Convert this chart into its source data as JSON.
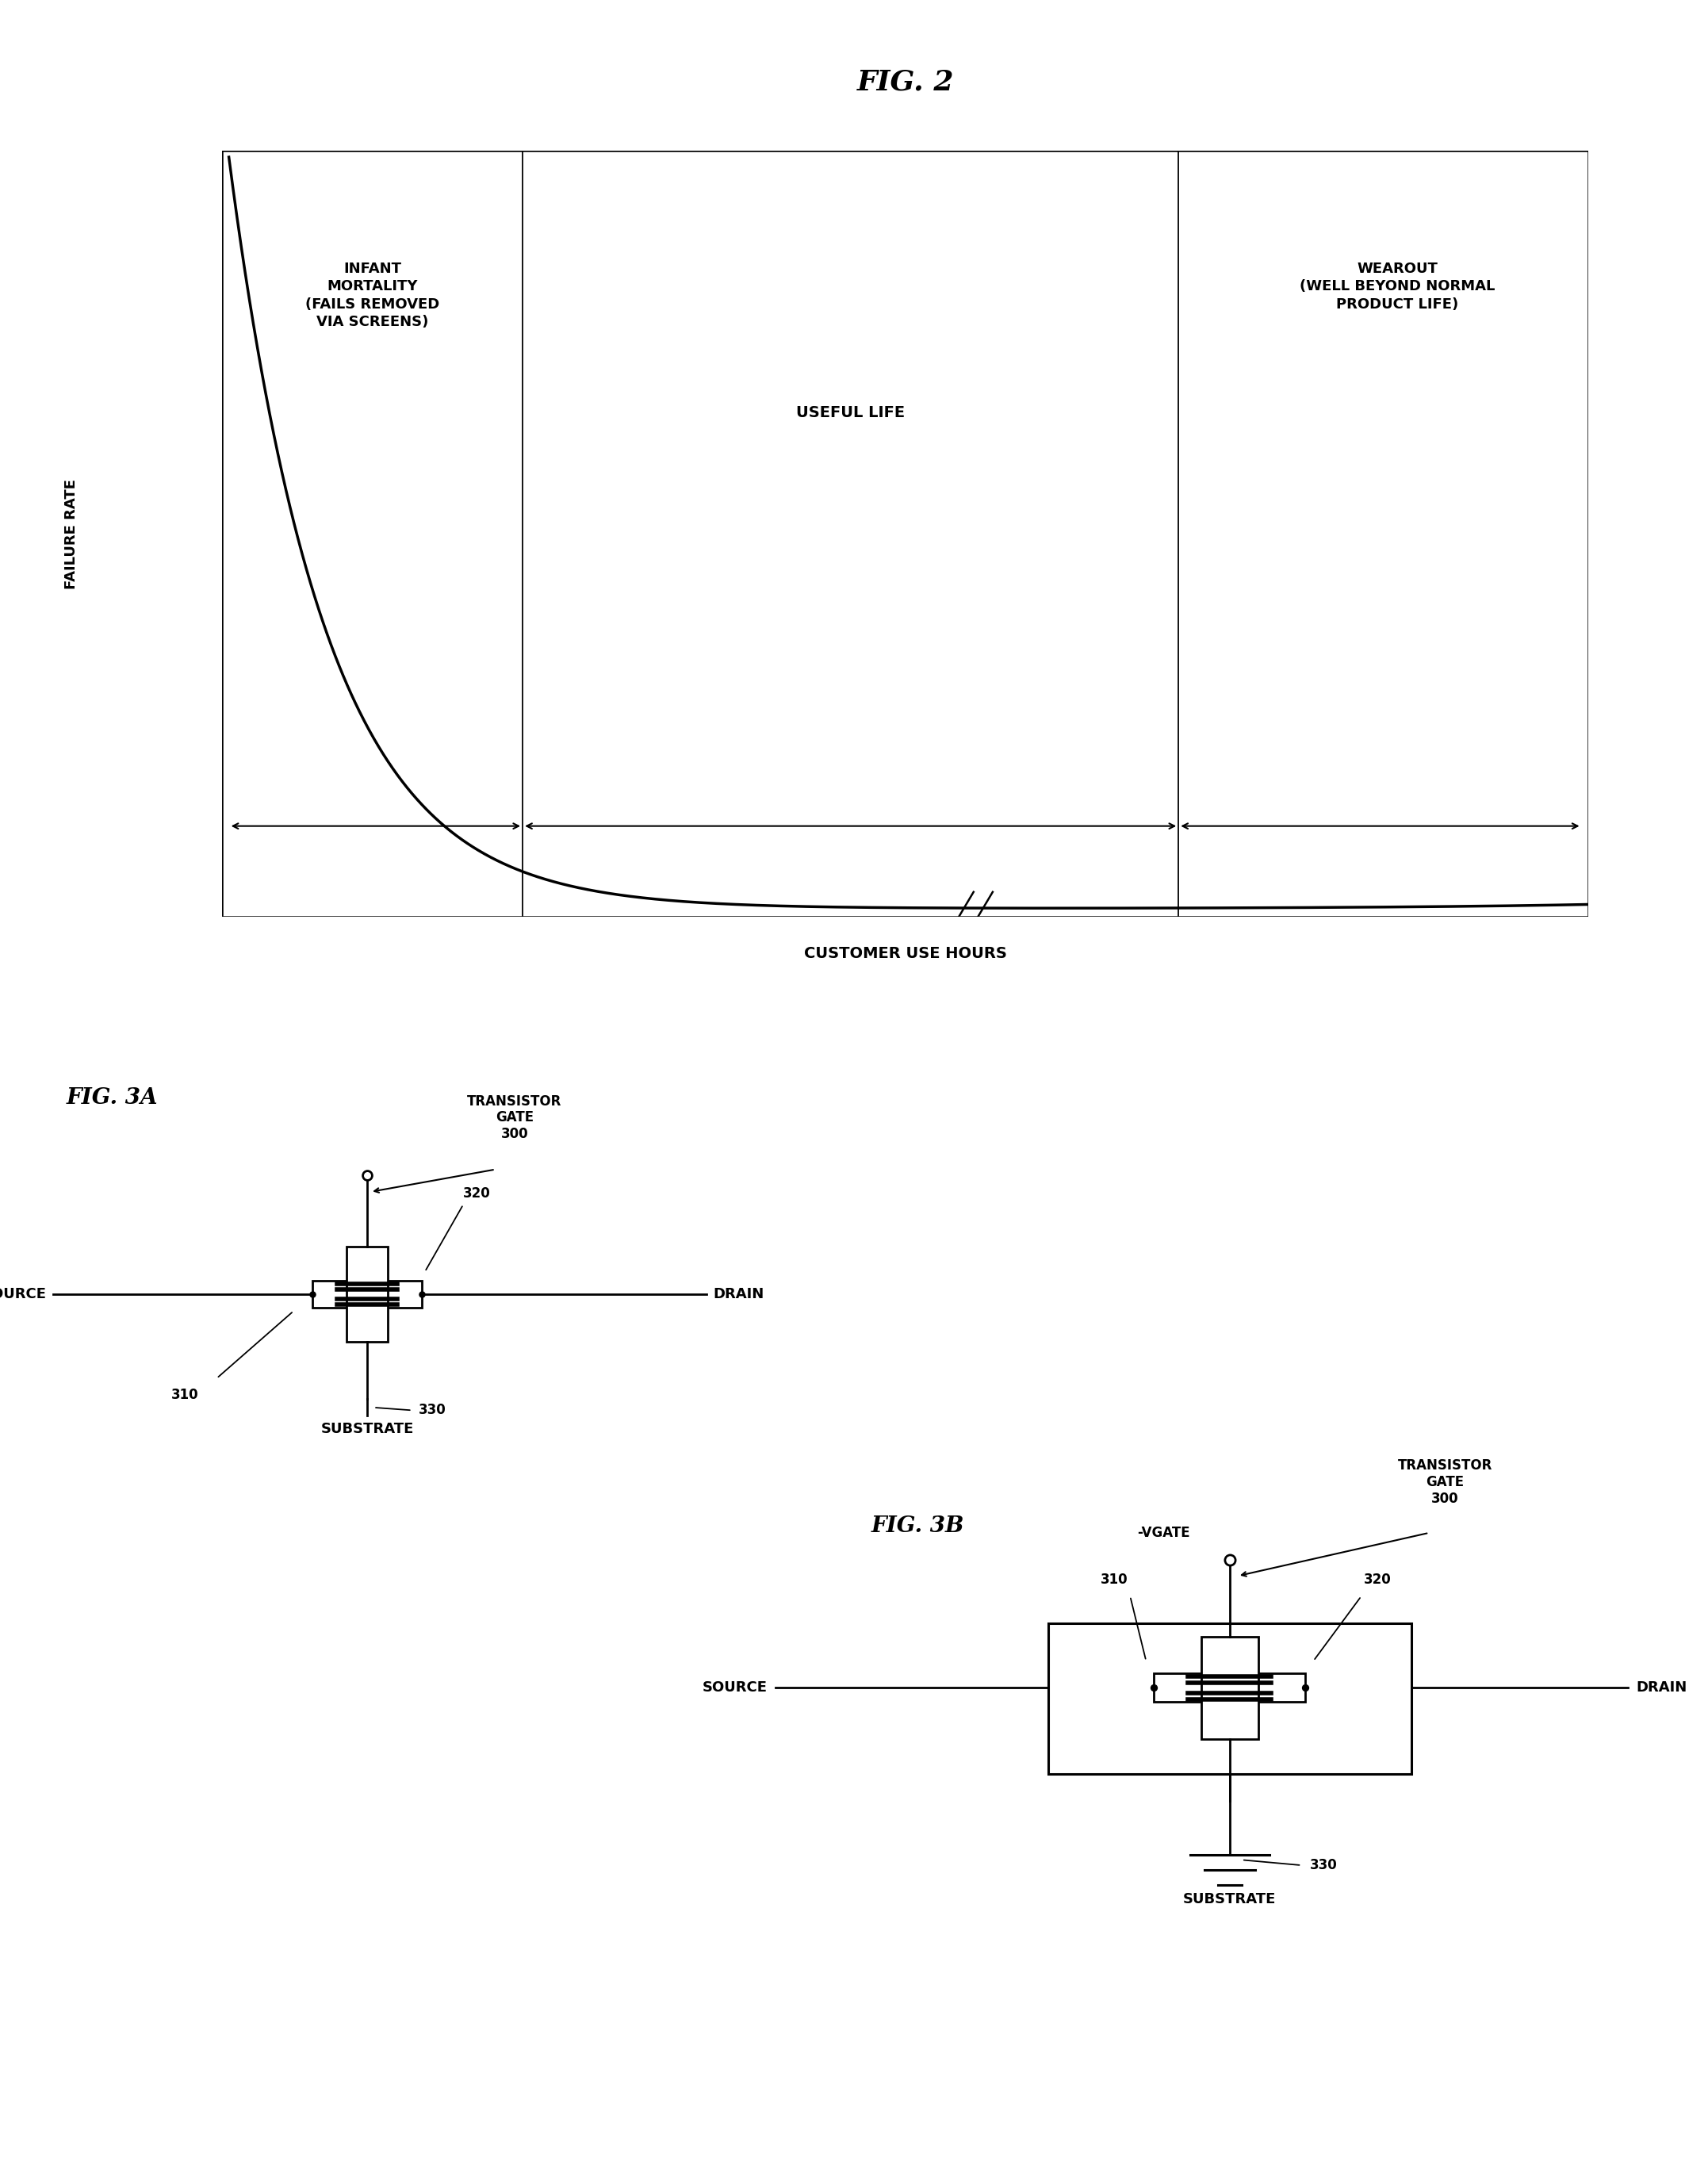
{
  "fig2_title": "FIG. 2",
  "fig3a_label": "FIG. 3A",
  "fig3b_label": "FIG. 3B",
  "background_color": "#ffffff",
  "infant_mortality_text": "INFANT\nMORTALITY\n(FAILS REMOVED\nVIA SCREENS)",
  "useful_life_text": "USEFUL LIFE",
  "wearout_text": "WEAROUT\n(WELL BEYOND NORMAL\nPRODUCT LIFE)",
  "failure_rate_text": "FAILURE RATE",
  "customer_use_hours_text": "CUSTOMER USE HOURS",
  "transistor_gate_text": "TRANSISTOR\nGATE",
  "gate_number": "300",
  "source_text": "SOURCE",
  "drain_text": "DRAIN",
  "substrate_text": "SUBSTRATE",
  "label_310": "310",
  "label_320": "320",
  "label_330": "330",
  "vgate_text": "-VGATE"
}
